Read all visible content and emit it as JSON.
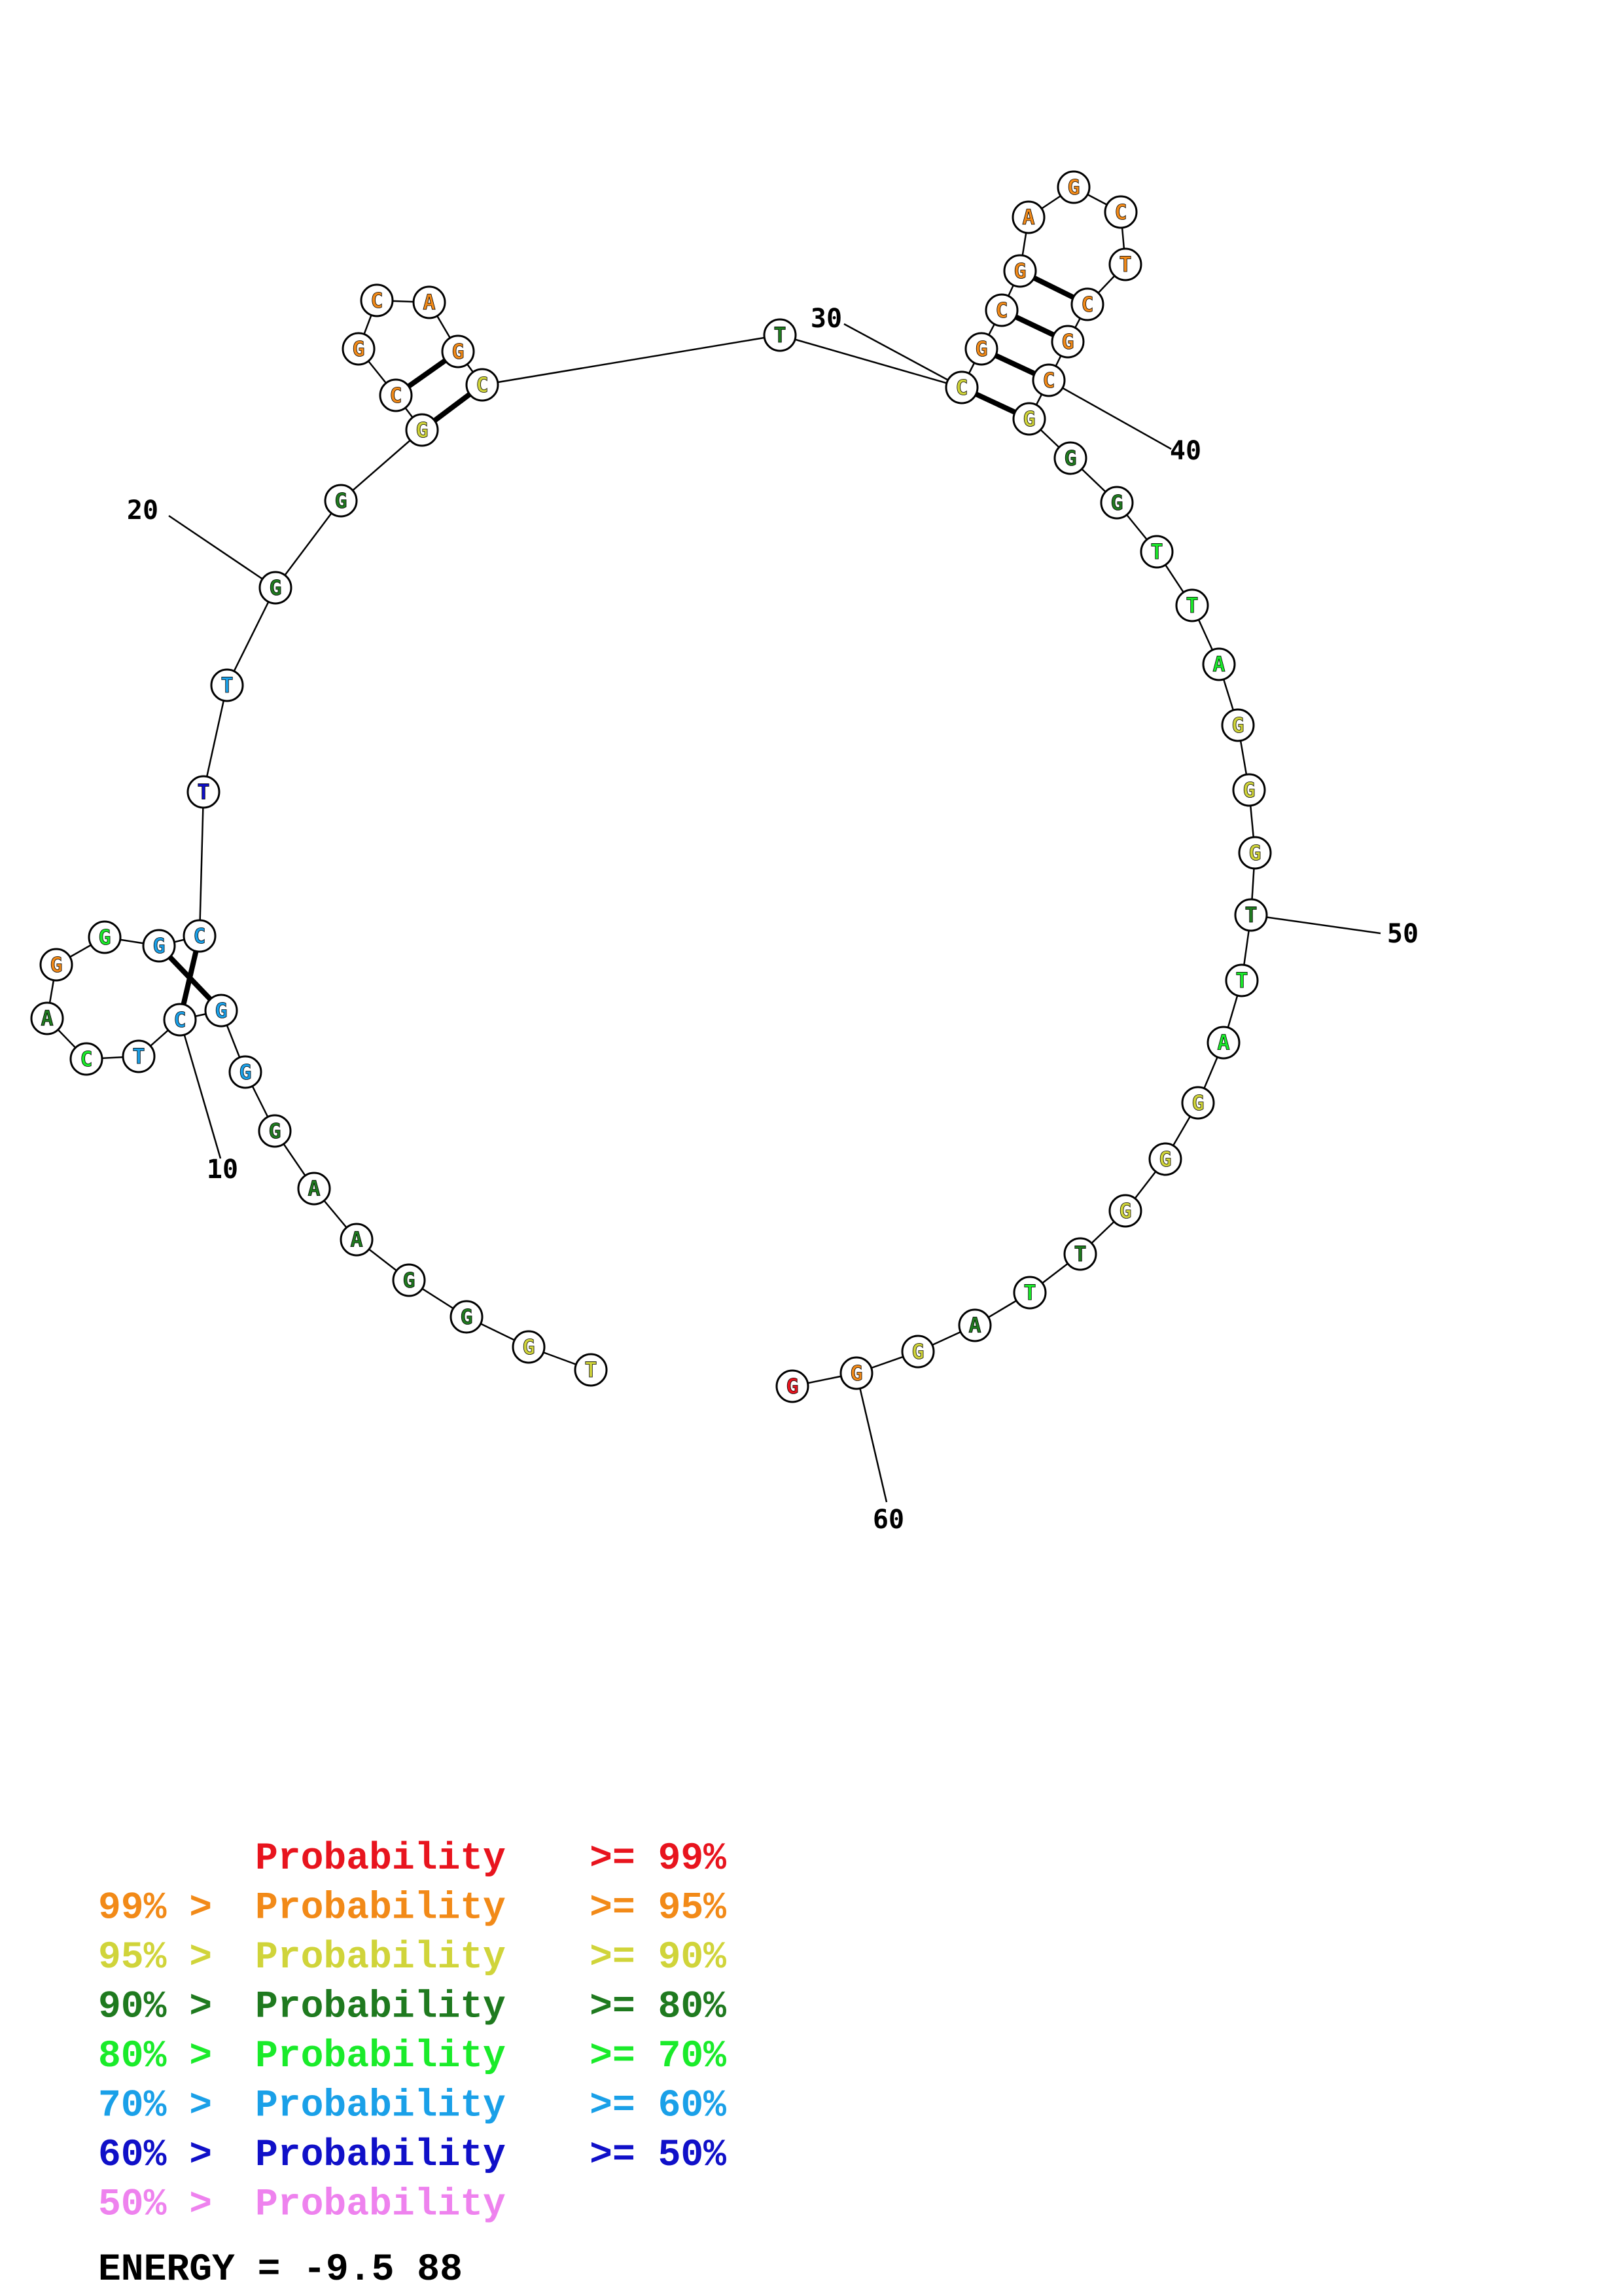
{
  "colors": {
    "red": "#e8141e",
    "orange": "#f28a18",
    "yellow": "#d0d43a",
    "dkgreen": "#1f7a1f",
    "green": "#1aeb2a",
    "cyan": "#1aa0e8",
    "blue": "#1010c8",
    "pink": "#ee82ee"
  },
  "sequence": [
    {
      "n": 1,
      "base": "T",
      "color": "yellow"
    },
    {
      "n": 2,
      "base": "G",
      "color": "yellow"
    },
    {
      "n": 3,
      "base": "G",
      "color": "dkgreen"
    },
    {
      "n": 4,
      "base": "G",
      "color": "dkgreen"
    },
    {
      "n": 5,
      "base": "A",
      "color": "dkgreen"
    },
    {
      "n": 6,
      "base": "A",
      "color": "dkgreen"
    },
    {
      "n": 7,
      "base": "G",
      "color": "dkgreen"
    },
    {
      "n": 8,
      "base": "G",
      "color": "cyan"
    },
    {
      "n": 9,
      "base": "G",
      "color": "cyan"
    },
    {
      "n": 10,
      "base": "C",
      "color": "cyan"
    },
    {
      "n": 11,
      "base": "T",
      "color": "cyan"
    },
    {
      "n": 12,
      "base": "C",
      "color": "green"
    },
    {
      "n": 13,
      "base": "A",
      "color": "dkgreen"
    },
    {
      "n": 14,
      "base": "G",
      "color": "orange"
    },
    {
      "n": 15,
      "base": "G",
      "color": "green"
    },
    {
      "n": 16,
      "base": "G",
      "color": "cyan"
    },
    {
      "n": 17,
      "base": "C",
      "color": "cyan"
    },
    {
      "n": 18,
      "base": "T",
      "color": "blue"
    },
    {
      "n": 19,
      "base": "T",
      "color": "cyan"
    },
    {
      "n": 20,
      "base": "G",
      "color": "dkgreen"
    },
    {
      "n": 21,
      "base": "G",
      "color": "dkgreen"
    },
    {
      "n": 22,
      "base": "G",
      "color": "yellow"
    },
    {
      "n": 23,
      "base": "C",
      "color": "orange"
    },
    {
      "n": 24,
      "base": "G",
      "color": "orange"
    },
    {
      "n": 25,
      "base": "C",
      "color": "orange"
    },
    {
      "n": 26,
      "base": "A",
      "color": "orange"
    },
    {
      "n": 27,
      "base": "G",
      "color": "orange"
    },
    {
      "n": 28,
      "base": "C",
      "color": "yellow"
    },
    {
      "n": 29,
      "base": "T",
      "color": "dkgreen"
    },
    {
      "n": 30,
      "base": "C",
      "color": "yellow"
    },
    {
      "n": 31,
      "base": "G",
      "color": "orange"
    },
    {
      "n": 32,
      "base": "C",
      "color": "orange"
    },
    {
      "n": 33,
      "base": "G",
      "color": "orange"
    },
    {
      "n": 34,
      "base": "A",
      "color": "orange"
    },
    {
      "n": 35,
      "base": "G",
      "color": "orange"
    },
    {
      "n": 36,
      "base": "C",
      "color": "orange"
    },
    {
      "n": 37,
      "base": "T",
      "color": "orange"
    },
    {
      "n": 38,
      "base": "C",
      "color": "orange"
    },
    {
      "n": 39,
      "base": "G",
      "color": "orange"
    },
    {
      "n": 40,
      "base": "C",
      "color": "orange"
    },
    {
      "n": 41,
      "base": "G",
      "color": "yellow"
    },
    {
      "n": 42,
      "base": "G",
      "color": "dkgreen"
    },
    {
      "n": 43,
      "base": "G",
      "color": "dkgreen"
    },
    {
      "n": 44,
      "base": "T",
      "color": "green"
    },
    {
      "n": 45,
      "base": "T",
      "color": "green"
    },
    {
      "n": 46,
      "base": "A",
      "color": "green"
    },
    {
      "n": 47,
      "base": "G",
      "color": "yellow"
    },
    {
      "n": 48,
      "base": "G",
      "color": "yellow"
    },
    {
      "n": 49,
      "base": "G",
      "color": "yellow"
    },
    {
      "n": 50,
      "base": "T",
      "color": "dkgreen"
    },
    {
      "n": 51,
      "base": "T",
      "color": "green"
    },
    {
      "n": 52,
      "base": "A",
      "color": "green"
    },
    {
      "n": 53,
      "base": "G",
      "color": "yellow"
    },
    {
      "n": 54,
      "base": "G",
      "color": "yellow"
    },
    {
      "n": 55,
      "base": "G",
      "color": "yellow"
    },
    {
      "n": 56,
      "base": "T",
      "color": "dkgreen"
    },
    {
      "n": 57,
      "base": "T",
      "color": "green"
    },
    {
      "n": 58,
      "base": "A",
      "color": "dkgreen"
    },
    {
      "n": 59,
      "base": "G",
      "color": "yellow"
    },
    {
      "n": 60,
      "base": "G",
      "color": "orange"
    },
    {
      "n": 61,
      "base": "G",
      "color": "red"
    }
  ],
  "pairs": [
    [
      9,
      16
    ],
    [
      10,
      17
    ],
    [
      22,
      28
    ],
    [
      23,
      27
    ],
    [
      30,
      41
    ],
    [
      31,
      40
    ],
    [
      32,
      39
    ],
    [
      33,
      38
    ]
  ],
  "tick_labels": [
    {
      "n": 10,
      "label": "10"
    },
    {
      "n": 20,
      "label": "20"
    },
    {
      "n": 30,
      "label": "30"
    },
    {
      "n": 40,
      "label": "40"
    },
    {
      "n": 50,
      "label": "50"
    },
    {
      "n": 60,
      "label": "60"
    }
  ],
  "legend": [
    {
      "prefix": "",
      "mid": "Probability",
      "suffix": ">= 99%",
      "color": "red"
    },
    {
      "prefix": "99% >",
      "mid": "Probability",
      "suffix": ">= 95%",
      "color": "orange"
    },
    {
      "prefix": "95% >",
      "mid": "Probability",
      "suffix": ">= 90%",
      "color": "yellow"
    },
    {
      "prefix": "90% >",
      "mid": "Probability",
      "suffix": ">= 80%",
      "color": "dkgreen"
    },
    {
      "prefix": "80% >",
      "mid": "Probability",
      "suffix": ">= 70%",
      "color": "green"
    },
    {
      "prefix": "70% >",
      "mid": "Probability",
      "suffix": ">= 60%",
      "color": "cyan"
    },
    {
      "prefix": "60% >",
      "mid": "Probability",
      "suffix": ">= 50%",
      "color": "blue"
    },
    {
      "prefix": "50% >",
      "mid": "Probability",
      "suffix": "",
      "color": "pink"
    }
  ],
  "energy": "ENERGY = -9.5  88"
}
